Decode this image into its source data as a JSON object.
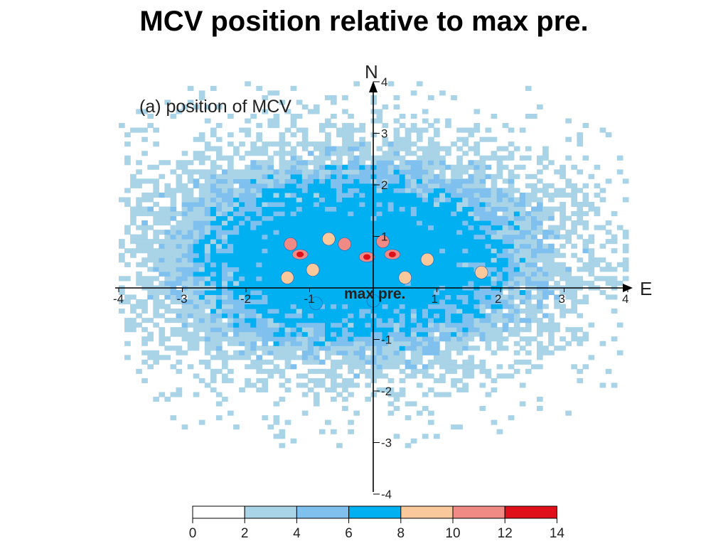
{
  "slide": {
    "title": "MCV position relative to max pre."
  },
  "chart_data": {
    "type": "heatmap",
    "title": "(a) position of MCV",
    "xlabel": "E",
    "ylabel": "N",
    "origin_label": "max pre.",
    "xlim": [
      -4,
      4
    ],
    "ylim": [
      -4,
      4
    ],
    "x_ticks": [
      "-4",
      "-3",
      "-2",
      "-1",
      "1",
      "2",
      "3",
      "4"
    ],
    "y_ticks": [
      "4",
      "3",
      "2",
      "1",
      "-1",
      "-2",
      "-3",
      "-4"
    ],
    "grid": false,
    "colorbar": {
      "placement": "bottom",
      "levels": [
        0,
        2,
        4,
        6,
        8,
        10,
        12,
        14
      ],
      "labels": [
        "0",
        "2",
        "4",
        "6",
        "8",
        "10",
        "12",
        "14"
      ],
      "colors": [
        "#ffffff",
        "#a9d3e6",
        "#7fc0ee",
        "#00b0f0",
        "#f9c89b",
        "#f08a84",
        "#e0101a"
      ]
    },
    "distribution": {
      "peak_center": [
        -0.3,
        0.6
      ],
      "sigma": [
        1.7,
        1.1
      ],
      "peak_count": 13
    },
    "hotspots": [
      {
        "x": -1.15,
        "y": 0.65,
        "value": 13
      },
      {
        "x": -0.1,
        "y": 0.6,
        "value": 13
      },
      {
        "x": 0.3,
        "y": 0.65,
        "value": 13
      },
      {
        "x": -1.3,
        "y": 0.85,
        "value": 11
      },
      {
        "x": -0.45,
        "y": 0.85,
        "value": 11
      },
      {
        "x": 0.15,
        "y": 0.9,
        "value": 11
      },
      {
        "x": -0.7,
        "y": 0.95,
        "value": 9
      },
      {
        "x": -0.95,
        "y": 0.35,
        "value": 9
      },
      {
        "x": 0.85,
        "y": 0.55,
        "value": 9
      },
      {
        "x": 1.7,
        "y": 0.3,
        "value": 9
      },
      {
        "x": -1.35,
        "y": 0.2,
        "value": 9
      },
      {
        "x": 0.0,
        "y": -0.25,
        "value": 7
      },
      {
        "x": -0.9,
        "y": -0.3,
        "value": 7
      },
      {
        "x": 0.5,
        "y": 0.2,
        "value": 9
      }
    ]
  }
}
